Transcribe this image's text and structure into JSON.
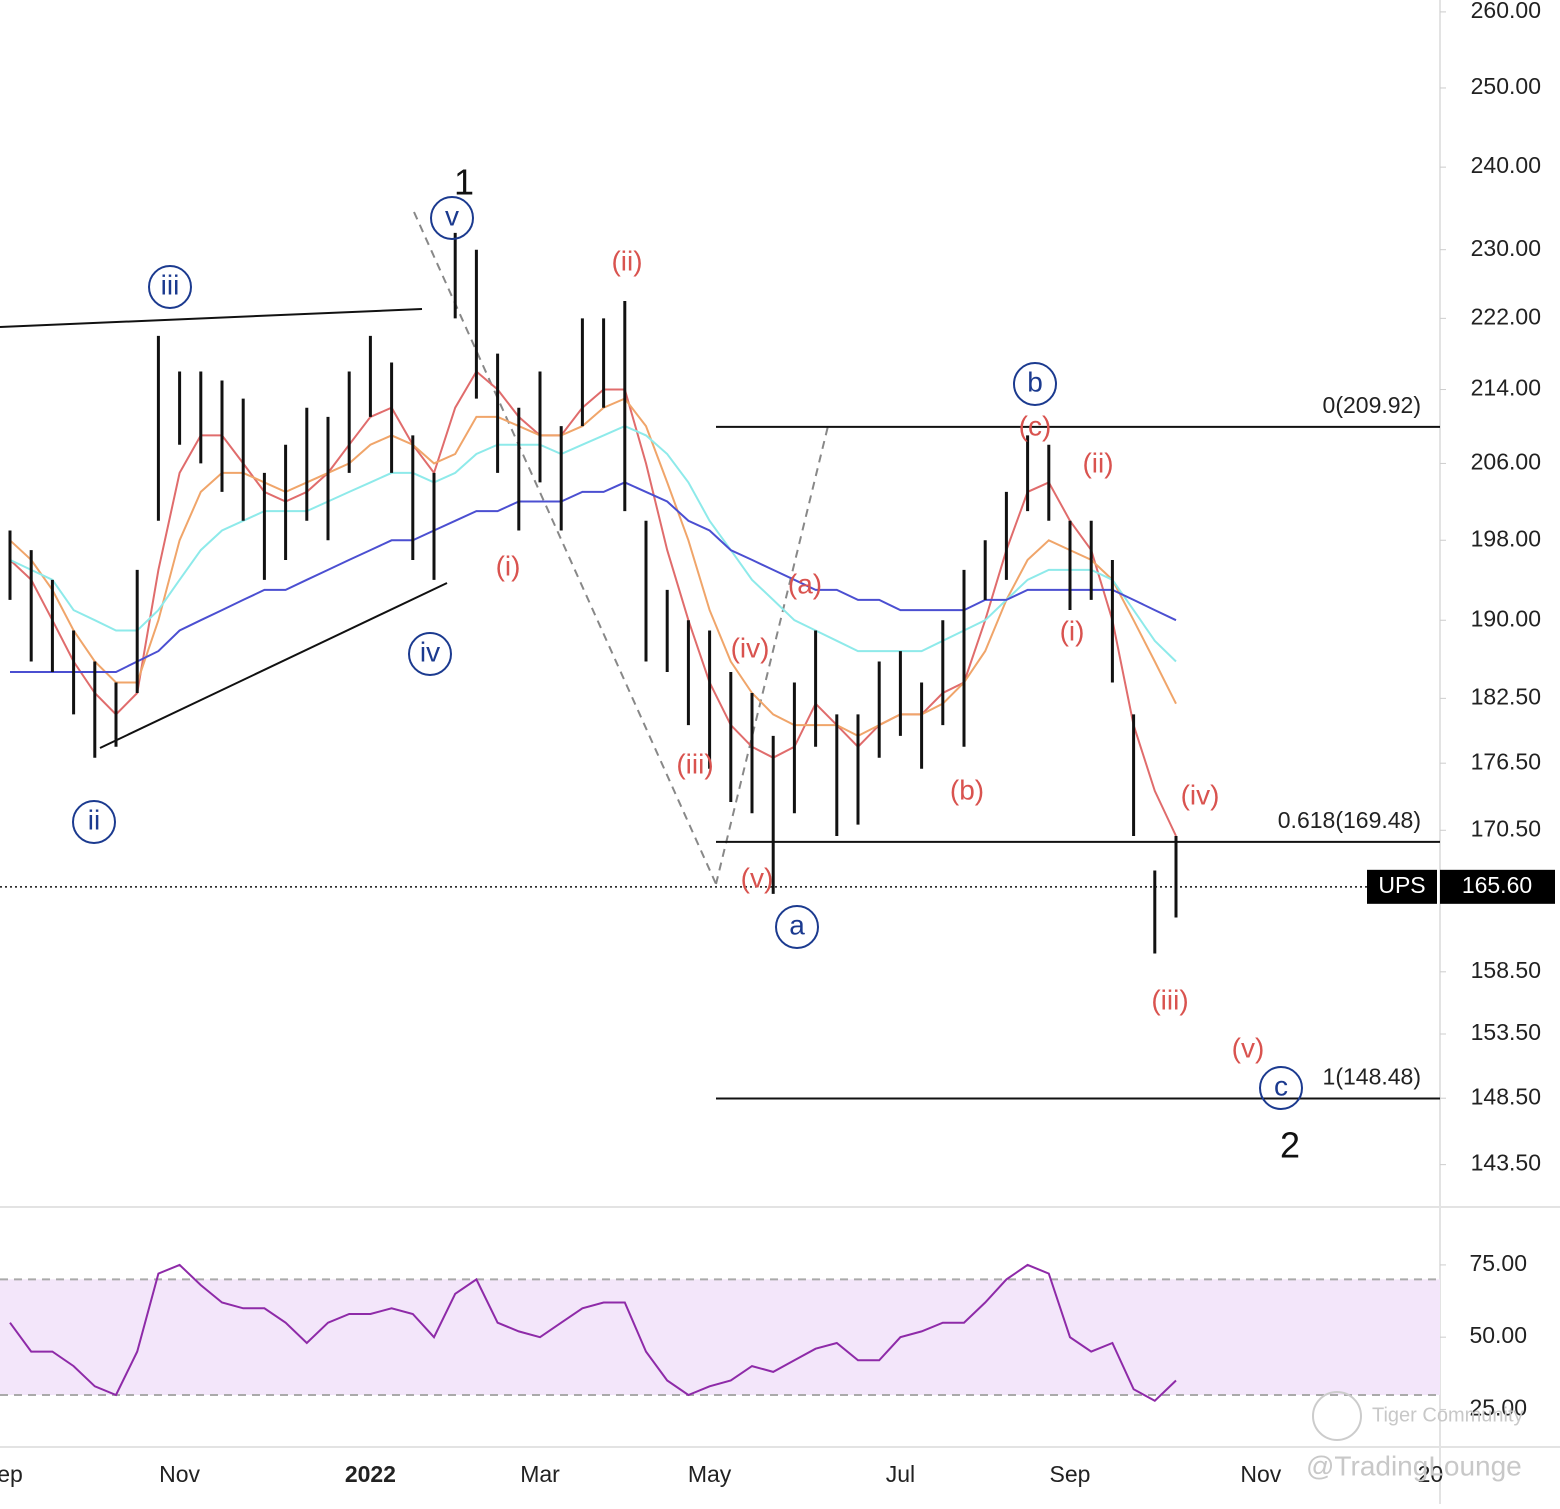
{
  "chart_data": {
    "type": "ohlc",
    "categories": [
      "ep",
      null,
      null,
      null,
      null,
      null,
      null,
      null,
      "Nov",
      null,
      null,
      null,
      null,
      null,
      null,
      null,
      null,
      "2022",
      null,
      null,
      null,
      null,
      null,
      null,
      null,
      "Mar",
      null,
      null,
      null,
      null,
      null,
      null,
      null,
      "May",
      null,
      null,
      null,
      null,
      null,
      null,
      null,
      null,
      "Jul",
      null,
      null,
      null,
      null,
      null,
      null,
      null,
      "Sep",
      null,
      null,
      null,
      null,
      null,
      null,
      null,
      null,
      "Nov",
      null,
      null,
      null,
      null,
      null,
      null,
      null,
      "20"
    ],
    "high": [
      199,
      197,
      194,
      189,
      186,
      184,
      195,
      220,
      216,
      216,
      215,
      213,
      205,
      208,
      212,
      211,
      216,
      220,
      217,
      209,
      205,
      232,
      230,
      218,
      212,
      216,
      210,
      222,
      222,
      224,
      200,
      193,
      190,
      189,
      185,
      183,
      179,
      184,
      189,
      181,
      181,
      186,
      187,
      184,
      190,
      195,
      198,
      203,
      209,
      208,
      200,
      200,
      196,
      181,
      167,
      170,
      null,
      null,
      null,
      null,
      null,
      null,
      null,
      null,
      null,
      null,
      null,
      null
    ],
    "low": [
      192,
      186,
      185,
      181,
      177,
      178,
      183,
      200,
      208,
      206,
      203,
      200,
      194,
      196,
      200,
      198,
      205,
      211,
      205,
      196,
      194,
      222,
      213,
      205,
      199,
      204,
      199,
      210,
      212,
      201,
      186,
      185,
      180,
      176,
      173,
      172,
      165,
      172,
      178,
      170,
      171,
      177,
      179,
      176,
      180,
      178,
      192,
      194,
      201,
      200,
      191,
      192,
      184,
      170,
      160,
      163,
      null,
      null,
      null,
      null,
      null,
      null,
      null,
      null,
      null,
      null,
      null,
      null
    ],
    "series": [
      {
        "color": "#e06c6c",
        "values": [
          196,
          194,
          190,
          186,
          183,
          181,
          183,
          195,
          205,
          209,
          209,
          206,
          203,
          202,
          203,
          205,
          208,
          211,
          212,
          208,
          205,
          212,
          216,
          214,
          211,
          209,
          209,
          212,
          214,
          214,
          206,
          197,
          190,
          184,
          180,
          178,
          177,
          178,
          182,
          180,
          178,
          180,
          181,
          181,
          183,
          184,
          190,
          197,
          203,
          204,
          200,
          197,
          190,
          180,
          174,
          170,
          null,
          null,
          null,
          null,
          null,
          null,
          null,
          null,
          null,
          null,
          null,
          null
        ]
      },
      {
        "color": "#f0a56a",
        "values": [
          198,
          196,
          193,
          189,
          186,
          184,
          184,
          190,
          198,
          203,
          205,
          205,
          204,
          203,
          204,
          205,
          206,
          208,
          209,
          208,
          206,
          207,
          211,
          211,
          210,
          209,
          209,
          210,
          212,
          213,
          210,
          204,
          198,
          191,
          186,
          183,
          181,
          180,
          180,
          180,
          179,
          180,
          181,
          181,
          182,
          184,
          187,
          192,
          196,
          198,
          197,
          196,
          194,
          190,
          186,
          182,
          null,
          null,
          null,
          null,
          null,
          null,
          null,
          null,
          null,
          null,
          null,
          null
        ]
      },
      {
        "color": "#8eeaea",
        "values": [
          196,
          195,
          194,
          191,
          190,
          189,
          189,
          191,
          194,
          197,
          199,
          200,
          201,
          201,
          201,
          202,
          203,
          204,
          205,
          205,
          204,
          205,
          207,
          208,
          208,
          208,
          207,
          208,
          209,
          210,
          209,
          207,
          204,
          200,
          197,
          194,
          192,
          190,
          189,
          188,
          187,
          187,
          187,
          187,
          188,
          189,
          190,
          192,
          194,
          195,
          195,
          195,
          194,
          191,
          188,
          186,
          null,
          null,
          null,
          null,
          null,
          null,
          null,
          null,
          null,
          null,
          null,
          null
        ]
      },
      {
        "color": "#4b4fd1",
        "values": [
          185,
          185,
          185,
          185,
          185,
          185,
          186,
          187,
          189,
          190,
          191,
          192,
          193,
          193,
          194,
          195,
          196,
          197,
          198,
          198,
          199,
          200,
          201,
          201,
          202,
          202,
          202,
          203,
          203,
          204,
          203,
          202,
          200,
          199,
          197,
          196,
          195,
          194,
          193,
          193,
          192,
          192,
          191,
          191,
          191,
          191,
          192,
          192,
          193,
          193,
          193,
          193,
          193,
          192,
          191,
          190,
          null,
          null,
          null,
          null,
          null,
          null,
          null,
          null,
          null,
          null,
          null,
          null
        ]
      }
    ],
    "bar_color": "#111111",
    "log_scale": true,
    "ylim": [
      140.4,
      261.6
    ],
    "yticks": [
      {
        "value": 260,
        "label": "260.00"
      },
      {
        "value": 250,
        "label": "250.00"
      },
      {
        "value": 240,
        "label": "240.00"
      },
      {
        "value": 230,
        "label": "230.00"
      },
      {
        "value": 222,
        "label": "222.00"
      },
      {
        "value": 214,
        "label": "214.00"
      },
      {
        "value": 206,
        "label": "206.00"
      },
      {
        "value": 198,
        "label": "198.00"
      },
      {
        "value": 190,
        "label": "190.00"
      },
      {
        "value": 182.5,
        "label": "182.50"
      },
      {
        "value": 176.5,
        "label": "176.50"
      },
      {
        "value": 170.5,
        "label": "170.50"
      },
      {
        "value": 158.5,
        "label": "158.50"
      },
      {
        "value": 153.5,
        "label": "153.50"
      },
      {
        "value": 148.5,
        "label": "148.50"
      },
      {
        "value": 143.5,
        "label": "143.50"
      }
    ],
    "fib_levels": [
      {
        "value": 209.92,
        "label": "0(209.92)"
      },
      {
        "value": 169.48,
        "label": "0.618(169.48)"
      },
      {
        "value": 148.48,
        "label": "1(148.48)"
      }
    ],
    "last_price": {
      "symbol": "UPS",
      "value": 165.6,
      "label": "165.60"
    },
    "annotations": [
      {
        "text": "1",
        "style": "black"
      },
      {
        "text": "2",
        "style": "black"
      },
      {
        "text": "iii",
        "style": "circled"
      },
      {
        "text": "v",
        "style": "circled"
      },
      {
        "text": "ii",
        "style": "circled"
      },
      {
        "text": "iv",
        "style": "circled"
      },
      {
        "text": "b",
        "style": "circled"
      },
      {
        "text": "a",
        "style": "circled"
      },
      {
        "text": "c",
        "style": "circled"
      },
      {
        "text": "(ii)",
        "style": "red"
      },
      {
        "text": "(i)",
        "style": "red"
      },
      {
        "text": "(a)",
        "style": "red"
      },
      {
        "text": "(iv)",
        "style": "red"
      },
      {
        "text": "(iii)",
        "style": "red"
      },
      {
        "text": "(v)",
        "style": "red"
      },
      {
        "text": "(c)",
        "style": "red"
      },
      {
        "text": "(ii)",
        "style": "red"
      },
      {
        "text": "(i)",
        "style": "red"
      },
      {
        "text": "(b)",
        "style": "red"
      },
      {
        "text": "(iv)",
        "style": "red"
      },
      {
        "text": "(iii)",
        "style": "red"
      },
      {
        "text": "(v)",
        "style": "red"
      }
    ],
    "rsi": {
      "color": "#8e2aa8",
      "values": [
        55,
        45,
        45,
        40,
        33,
        30,
        45,
        72,
        75,
        68,
        62,
        60,
        60,
        55,
        48,
        55,
        58,
        58,
        60,
        58,
        50,
        65,
        70,
        55,
        52,
        50,
        55,
        60,
        62,
        62,
        45,
        35,
        30,
        33,
        35,
        40,
        38,
        42,
        46,
        48,
        42,
        42,
        50,
        52,
        55,
        55,
        62,
        70,
        75,
        72,
        50,
        45,
        48,
        32,
        28,
        35,
        null,
        null,
        null,
        null,
        null,
        null,
        null,
        null,
        null,
        null,
        null,
        null
      ],
      "ylim": [
        12,
        94
      ],
      "yticks": [
        {
          "value": 75,
          "label": "75.00"
        },
        {
          "value": 50,
          "label": "50.00"
        },
        {
          "value": 25,
          "label": "25.00"
        }
      ],
      "band": [
        30,
        70
      ]
    },
    "watermark": [
      "Tiger Community",
      "@TradingLounge"
    ]
  }
}
